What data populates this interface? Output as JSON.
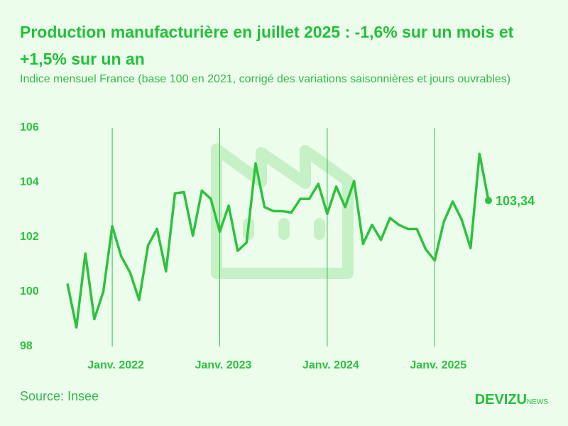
{
  "chart_data": {
    "type": "line",
    "title": "Production manufacturière en juillet 2025 : -1,6% sur un mois et +1,5% sur un an",
    "subtitle": "Indice mensuel France (base 100 en 2021, corrigé des variations saisonnières et jours ouvrables)",
    "source": "Source: Insee",
    "brand": "DEVIZU",
    "brand_suffix": "NEWS",
    "categories": [
      null,
      null,
      null,
      null,
      null,
      "Janv. 2022",
      null,
      null,
      null,
      null,
      null,
      null,
      null,
      null,
      null,
      null,
      null,
      "Janv. 2023",
      null,
      null,
      null,
      null,
      null,
      null,
      null,
      null,
      null,
      null,
      null,
      "Janv. 2024",
      null,
      null,
      null,
      null,
      null,
      null,
      null,
      null,
      null,
      null,
      null,
      "Janv. 2025",
      null,
      null,
      null,
      null,
      null,
      null
    ],
    "values": [
      100.3,
      98.7,
      101.4,
      99.0,
      100.0,
      102.4,
      101.3,
      100.7,
      99.7,
      101.7,
      102.3,
      100.75,
      103.6,
      103.65,
      102.05,
      103.7,
      103.4,
      102.2,
      103.15,
      101.5,
      101.8,
      104.7,
      103.1,
      102.95,
      102.95,
      102.9,
      103.4,
      103.4,
      103.95,
      102.85,
      103.85,
      103.1,
      104.05,
      101.75,
      102.45,
      101.9,
      102.7,
      102.45,
      102.3,
      102.3,
      101.55,
      101.15,
      102.55,
      103.3,
      102.65,
      101.6,
      105.05,
      103.34
    ],
    "value_labels": [
      null,
      null,
      null,
      null,
      null,
      null,
      null,
      null,
      null,
      null,
      null,
      null,
      null,
      null,
      null,
      null,
      null,
      null,
      null,
      null,
      null,
      null,
      null,
      null,
      null,
      null,
      null,
      null,
      null,
      null,
      null,
      null,
      null,
      null,
      null,
      null,
      null,
      null,
      null,
      null,
      null,
      null,
      null,
      null,
      null,
      null,
      null,
      "103,34"
    ],
    "color": "#2cc23e",
    "ylim": [
      98,
      106
    ],
    "yticks": [
      98,
      100,
      102,
      104,
      106
    ],
    "grid": "x"
  }
}
